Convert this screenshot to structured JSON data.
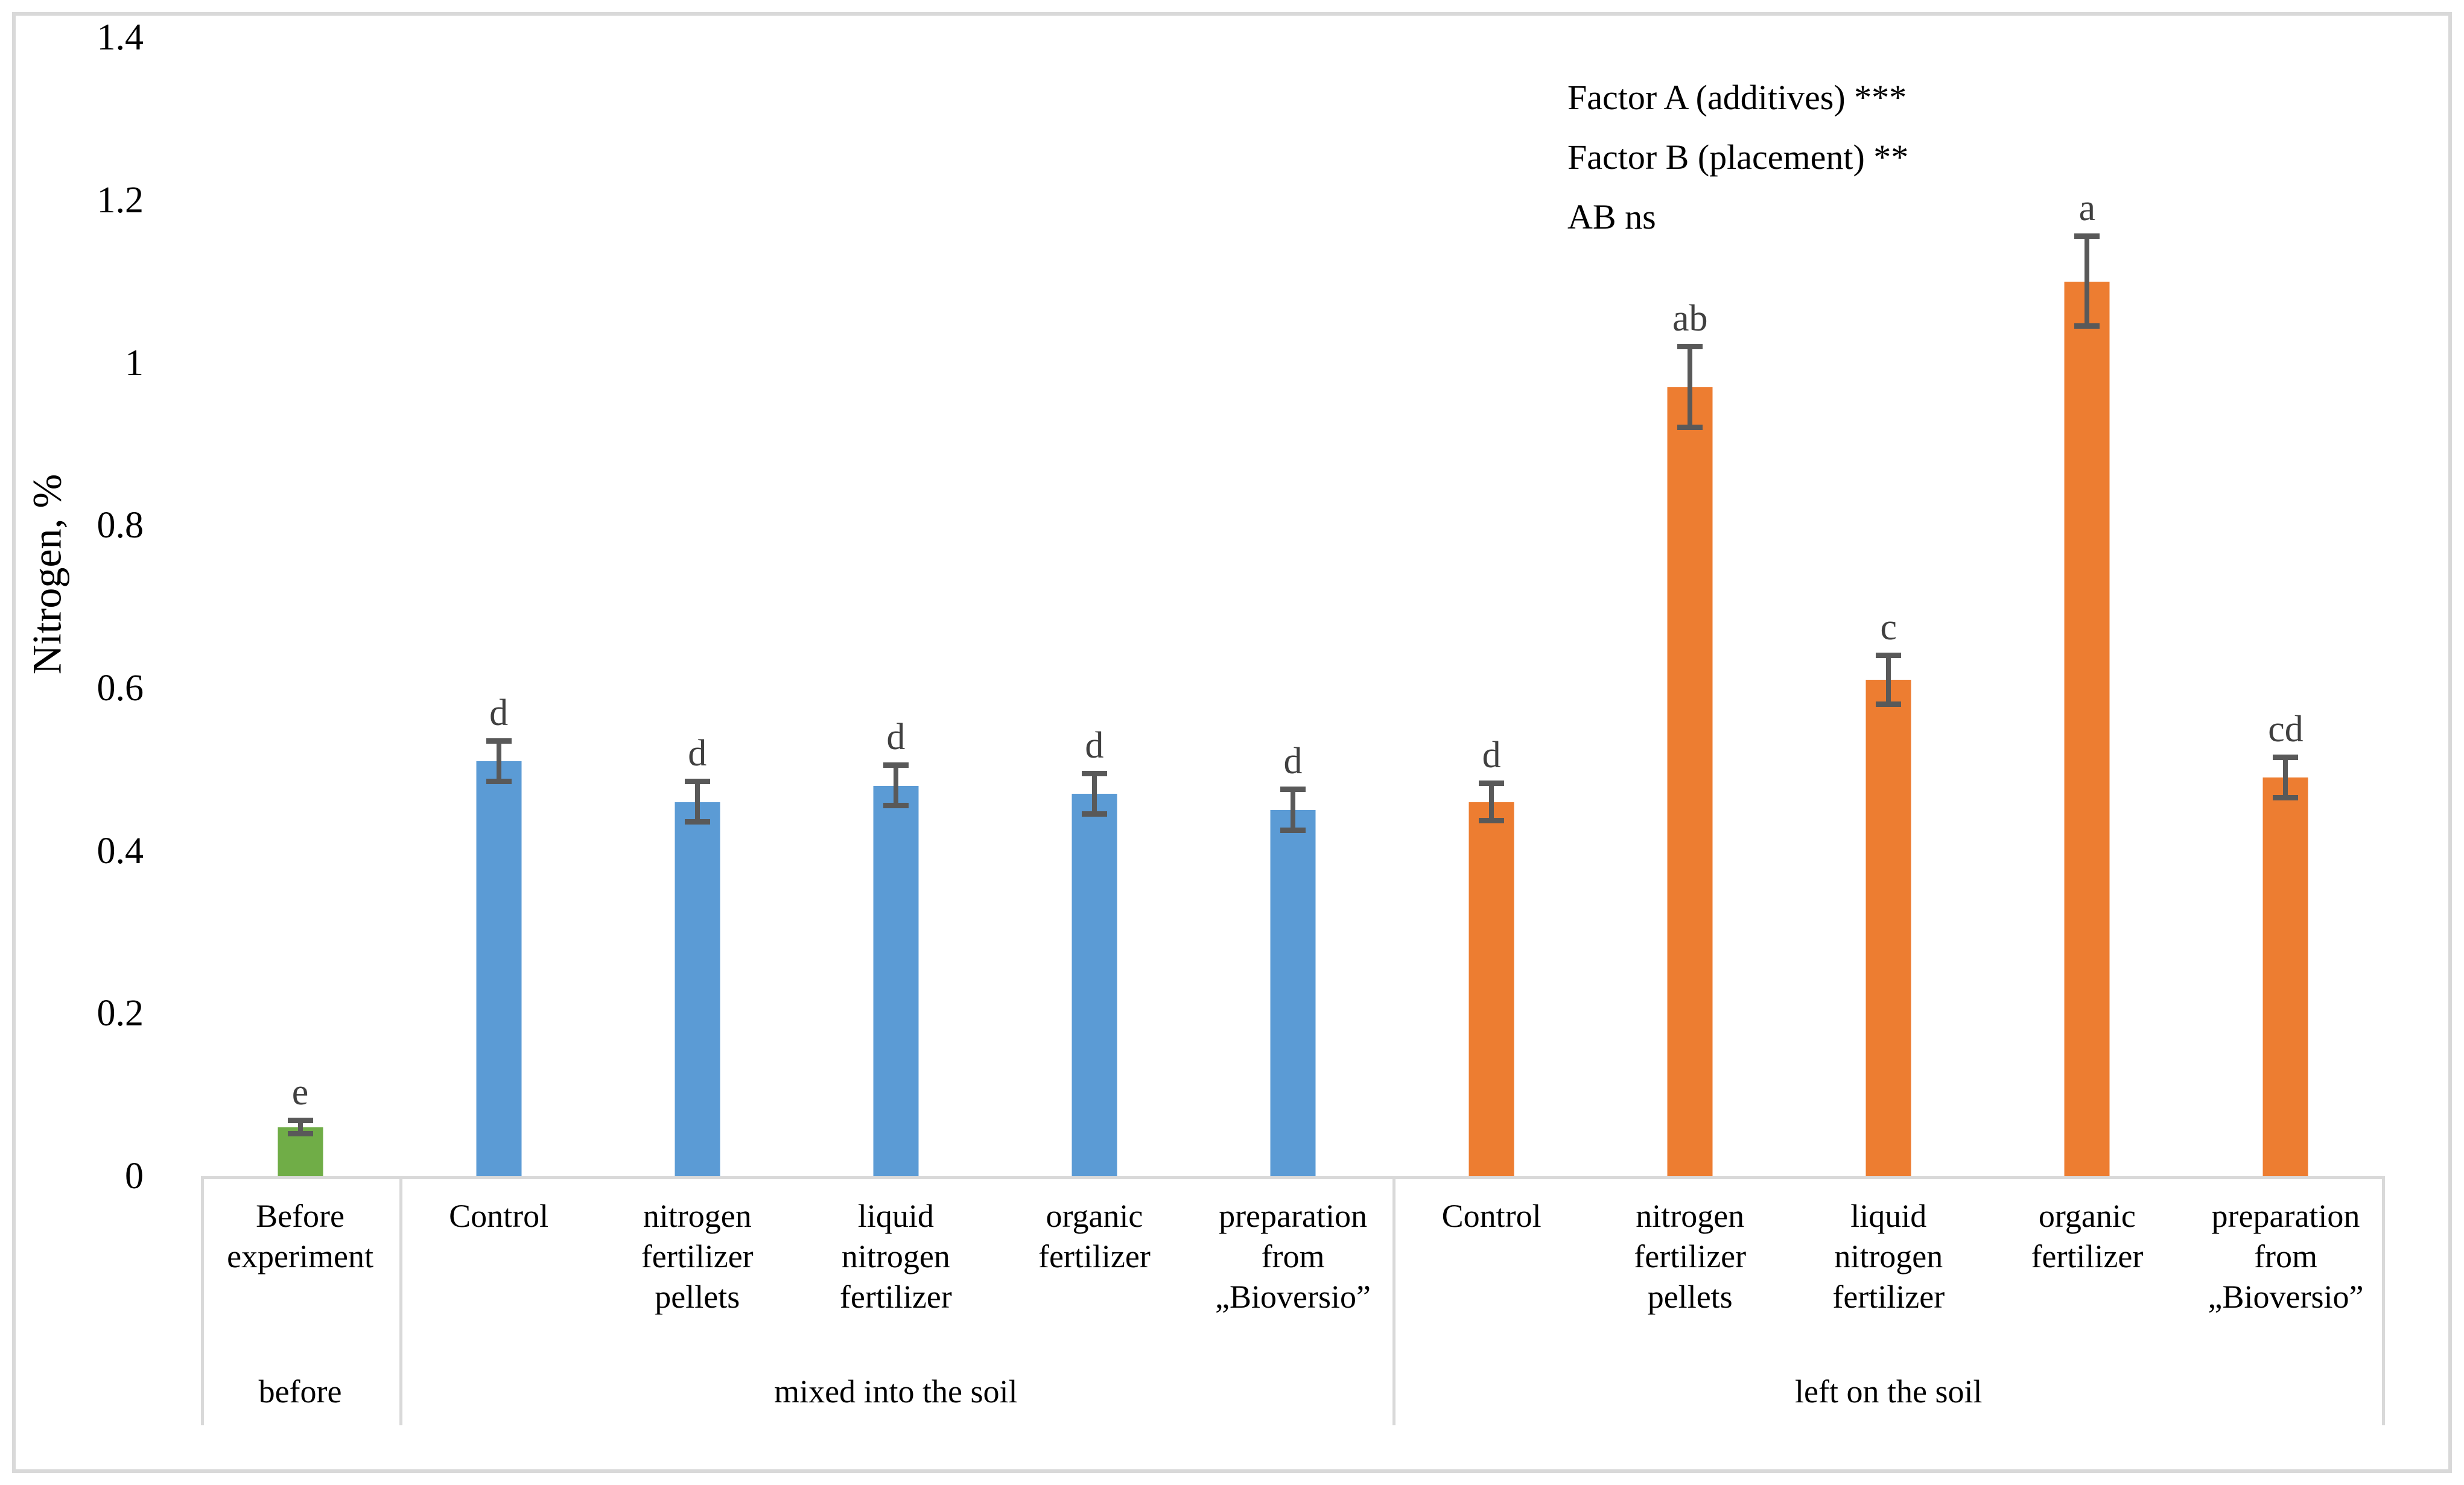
{
  "figure": {
    "background": "#FFFFFF",
    "border_color": "#D9D9D9"
  },
  "chart_data": {
    "type": "bar",
    "title": "",
    "xlabel": "",
    "ylabel": "Nitrogen, %",
    "ylim": [
      0,
      1.4
    ],
    "grid": false,
    "legend": false,
    "axis_line_color": "#D9D9D9",
    "error_bar_color": "#595959",
    "letter_color": "#404040",
    "yticks": [
      {
        "value": 1.4,
        "label": "1.4"
      },
      {
        "value": 1.2,
        "label": "1.2"
      },
      {
        "value": 1.0,
        "label": "1"
      },
      {
        "value": 0.8,
        "label": "0.8"
      },
      {
        "value": 0.6,
        "label": "0.6"
      },
      {
        "value": 0.4,
        "label": "0.4"
      },
      {
        "value": 0.2,
        "label": "0.2"
      },
      {
        "value": 0.0,
        "label": "0"
      }
    ],
    "annotations": [
      "Factor A (additives) ***",
      "Factor B (placement) **",
      "AB ns"
    ],
    "groups": [
      {
        "name": "before",
        "color": "#70AD47",
        "bars": [
          {
            "label": "Before\nexperiment",
            "value": 0.06,
            "error": 0.008,
            "letter": "e"
          }
        ]
      },
      {
        "name": "mixed into the soil",
        "color": "#5B9BD5",
        "bars": [
          {
            "label": "Control",
            "value": 0.51,
            "error": 0.025,
            "letter": "d"
          },
          {
            "label": "nitrogen\nfertilizer\npellets",
            "value": 0.46,
            "error": 0.025,
            "letter": "d"
          },
          {
            "label": "liquid\nnitrogen\nfertilizer",
            "value": 0.48,
            "error": 0.025,
            "letter": "d"
          },
          {
            "label": "organic\nfertilizer",
            "value": 0.47,
            "error": 0.025,
            "letter": "d"
          },
          {
            "label": "preparation\nfrom\n„Bioversio”",
            "value": 0.45,
            "error": 0.025,
            "letter": "d"
          }
        ]
      },
      {
        "name": "left on the soil",
        "color": "#ED7D31",
        "bars": [
          {
            "label": "Control",
            "value": 0.46,
            "error": 0.023,
            "letter": "d"
          },
          {
            "label": "nitrogen\nfertilizer\npellets",
            "value": 0.97,
            "error": 0.05,
            "letter": "ab"
          },
          {
            "label": "liquid\nnitrogen\nfertilizer",
            "value": 0.61,
            "error": 0.03,
            "letter": "c"
          },
          {
            "label": "organic\nfertilizer",
            "value": 1.1,
            "error": 0.055,
            "letter": "a"
          },
          {
            "label": "preparation\nfrom\n„Bioversio”",
            "value": 0.49,
            "error": 0.025,
            "letter": "cd"
          }
        ]
      }
    ]
  }
}
